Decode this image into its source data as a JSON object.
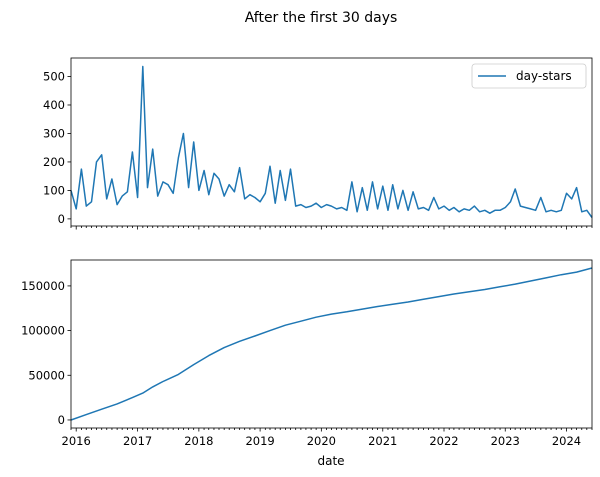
{
  "chart_data": {
    "title": "After the first 30 days",
    "xlabel": "date",
    "x_range": [
      "2015-12-01",
      "2024-06-01"
    ],
    "x_ticks": [
      "2016",
      "2017",
      "2018",
      "2019",
      "2020",
      "2021",
      "2022",
      "2023",
      "2024"
    ],
    "colors": {
      "series": "#1f77b4"
    },
    "panels": [
      {
        "type": "line",
        "series": [
          {
            "name": "day-stars",
            "x": [
              "2015-12-01",
              "2016-01-01",
              "2016-02-01",
              "2016-03-01",
              "2016-04-01",
              "2016-05-01",
              "2016-06-01",
              "2016-07-01",
              "2016-08-01",
              "2016-09-01",
              "2016-10-01",
              "2016-11-01",
              "2016-12-01",
              "2017-01-01",
              "2017-02-01",
              "2017-03-01",
              "2017-04-01",
              "2017-05-01",
              "2017-06-01",
              "2017-07-01",
              "2017-08-01",
              "2017-09-01",
              "2017-10-01",
              "2017-11-01",
              "2017-12-01",
              "2018-01-01",
              "2018-02-01",
              "2018-03-01",
              "2018-04-01",
              "2018-05-01",
              "2018-06-01",
              "2018-07-01",
              "2018-08-01",
              "2018-09-01",
              "2018-10-01",
              "2018-11-01",
              "2018-12-01",
              "2019-01-01",
              "2019-02-01",
              "2019-03-01",
              "2019-04-01",
              "2019-05-01",
              "2019-06-01",
              "2019-07-01",
              "2019-08-01",
              "2019-09-01",
              "2019-10-01",
              "2019-11-01",
              "2019-12-01",
              "2020-01-01",
              "2020-02-01",
              "2020-03-01",
              "2020-04-01",
              "2020-05-01",
              "2020-06-01",
              "2020-07-01",
              "2020-08-01",
              "2020-09-01",
              "2020-10-01",
              "2020-11-01",
              "2020-12-01",
              "2021-01-01",
              "2021-02-01",
              "2021-03-01",
              "2021-04-01",
              "2021-05-01",
              "2021-06-01",
              "2021-07-01",
              "2021-08-01",
              "2021-09-01",
              "2021-10-01",
              "2021-11-01",
              "2021-12-01",
              "2022-01-01",
              "2022-02-01",
              "2022-03-01",
              "2022-04-01",
              "2022-05-01",
              "2022-06-01",
              "2022-07-01",
              "2022-08-01",
              "2022-09-01",
              "2022-10-01",
              "2022-11-01",
              "2022-12-01",
              "2023-01-01",
              "2023-02-01",
              "2023-03-01",
              "2023-04-01",
              "2023-05-01",
              "2023-06-01",
              "2023-07-01",
              "2023-08-01",
              "2023-09-01",
              "2023-10-01",
              "2023-11-01",
              "2023-12-01",
              "2024-01-01",
              "2024-02-01",
              "2024-03-01",
              "2024-04-01",
              "2024-05-01",
              "2024-06-01"
            ],
            "y": [
              100,
              35,
              175,
              45,
              60,
              200,
              225,
              70,
              140,
              50,
              80,
              95,
              235,
              75,
              535,
              110,
              245,
              80,
              130,
              120,
              90,
              215,
              300,
              110,
              270,
              100,
              170,
              85,
              160,
              140,
              80,
              120,
              95,
              180,
              70,
              85,
              75,
              60,
              90,
              185,
              55,
              170,
              65,
              175,
              45,
              50,
              40,
              45,
              55,
              40,
              50,
              45,
              35,
              40,
              30,
              130,
              25,
              110,
              30,
              130,
              35,
              115,
              30,
              120,
              35,
              100,
              30,
              95,
              35,
              40,
              30,
              75,
              35,
              45,
              30,
              40,
              25,
              35,
              30,
              45,
              25,
              30,
              20,
              30,
              30,
              40,
              60,
              105,
              45,
              40,
              35,
              30,
              75,
              25,
              30,
              25,
              30,
              90,
              70,
              110,
              25,
              30,
              5
            ]
          }
        ],
        "ylim": [
          -25,
          565
        ],
        "yticks": [
          0,
          100,
          200,
          300,
          400,
          500
        ],
        "legend": "top-right"
      },
      {
        "type": "line",
        "series": [
          {
            "x": [
              "2015-12-01",
              "2016-03-01",
              "2016-06-01",
              "2016-09-01",
              "2016-12-01",
              "2017-02-01",
              "2017-04-01",
              "2017-06-01",
              "2017-09-01",
              "2017-12-01",
              "2018-03-01",
              "2018-06-01",
              "2018-09-01",
              "2018-12-01",
              "2019-03-01",
              "2019-06-01",
              "2019-09-01",
              "2019-12-01",
              "2020-03-01",
              "2020-06-01",
              "2020-09-01",
              "2020-12-01",
              "2021-03-01",
              "2021-06-01",
              "2021-09-01",
              "2021-12-01",
              "2022-03-01",
              "2022-06-01",
              "2022-09-01",
              "2022-12-01",
              "2023-03-01",
              "2023-06-01",
              "2023-09-01",
              "2023-12-01",
              "2024-03-01",
              "2024-06-01"
            ],
            "y": [
              0,
              6000,
              12000,
              18000,
              25000,
              30000,
              37000,
              43000,
              51000,
              62000,
              72000,
              81000,
              88000,
              94000,
              100000,
              106000,
              110500,
              115000,
              118500,
              121000,
              124000,
              127000,
              129500,
              132000,
              135000,
              138000,
              141000,
              143500,
              146000,
              149000,
              152000,
              155500,
              159000,
              162500,
              165500,
              170000
            ]
          }
        ],
        "ylim": [
          -9000,
          179000
        ],
        "yticks": [
          0,
          50000,
          100000,
          150000
        ],
        "legend": "none"
      }
    ]
  }
}
